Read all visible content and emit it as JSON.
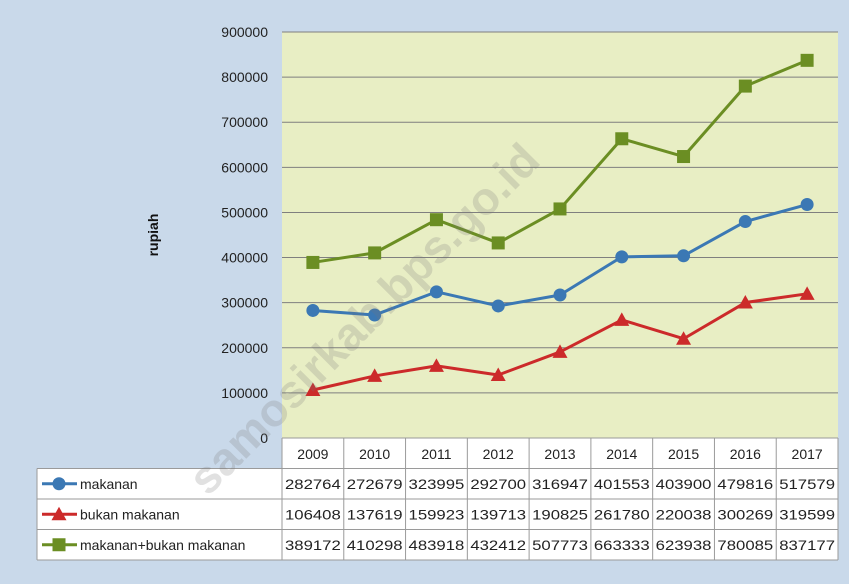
{
  "watermark": "samosirkab.bps.go.id",
  "chart_data": {
    "type": "line",
    "ylabel": "rupiah",
    "ylim": [
      0,
      900000
    ],
    "yticks": [
      "900000",
      "800000",
      "700000",
      "600000",
      "500000",
      "400000",
      "300000",
      "200000",
      "100000",
      "0"
    ],
    "categories": [
      "2009",
      "2010",
      "2011",
      "2012",
      "2013",
      "2014",
      "2015",
      "2016",
      "2017"
    ],
    "legend_position": "data-table",
    "grid": true,
    "colors": {
      "plot_bg": "#e8eec4",
      "page_bg": "#c9d9ea",
      "grid": "#7f7f7f"
    },
    "series": [
      {
        "name": "makanan",
        "marker": "circle",
        "color": "#3b78b4",
        "values": [
          282764,
          272679,
          323995,
          292700,
          316947,
          401553,
          403900,
          479816,
          517579
        ],
        "labels": [
          "282764",
          "272679",
          "323995",
          "292700",
          "316947",
          "401553",
          "403900",
          "479816",
          "517579"
        ]
      },
      {
        "name": "bukan makanan",
        "marker": "triangle",
        "color": "#cc2a2a",
        "values": [
          106408,
          137619,
          159923,
          139713,
          190825,
          261780,
          220038,
          300269,
          319599
        ],
        "labels": [
          "106408",
          "137619",
          "159923",
          "139713",
          "190825",
          "261780",
          "220038",
          "300269",
          "319599"
        ]
      },
      {
        "name": "makanan+bukan makanan",
        "marker": "square",
        "color": "#6b8e23",
        "values": [
          389172,
          410298,
          483918,
          432412,
          507773,
          663333,
          623938,
          780085,
          837177
        ],
        "labels": [
          "389172",
          "410298",
          "483918",
          "432412",
          "507773",
          "663333",
          "623938",
          "780085",
          "837177"
        ]
      }
    ]
  }
}
